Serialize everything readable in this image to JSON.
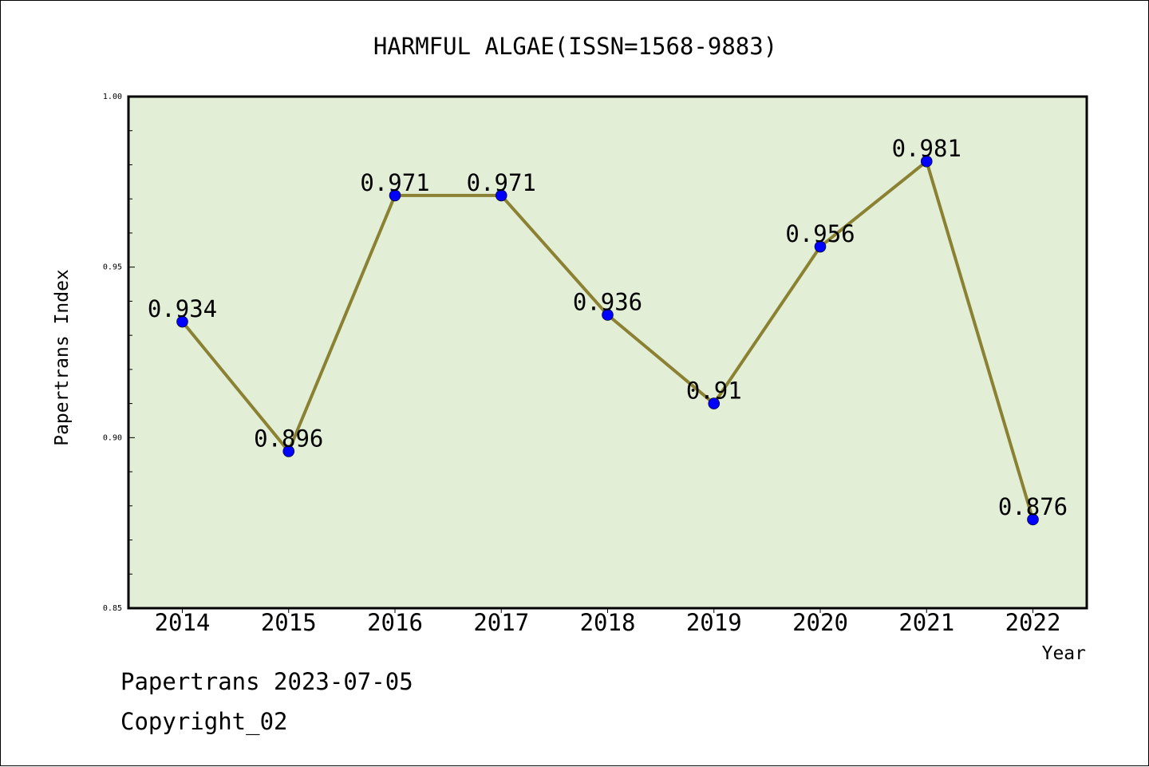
{
  "chart_data": {
    "type": "line",
    "title": "HARMFUL ALGAE(ISSN=1568-9883)",
    "xlabel": "Year",
    "ylabel": "Papertrans Index",
    "categories": [
      "2014",
      "2015",
      "2016",
      "2017",
      "2018",
      "2019",
      "2020",
      "2021",
      "2022"
    ],
    "series": [
      {
        "values": [
          0.934,
          0.896,
          0.971,
          0.971,
          0.936,
          0.91,
          0.956,
          0.981,
          0.876
        ]
      }
    ],
    "data_labels": [
      "0.934",
      "0.896",
      "0.971",
      "0.971",
      "0.936",
      "0.91",
      "0.956",
      "0.981",
      "0.876"
    ],
    "ylim": [
      0.85,
      1.0
    ],
    "yticks": [
      "1.00",
      "0.95",
      "0.90",
      "0.85"
    ],
    "grid": false,
    "colors": {
      "plot_background": "#e2efd6",
      "line": "#8b8133",
      "marker": "#0000ff"
    }
  },
  "footer": {
    "line1": "Papertrans 2023-07-05",
    "line2": "Copyright_02"
  }
}
